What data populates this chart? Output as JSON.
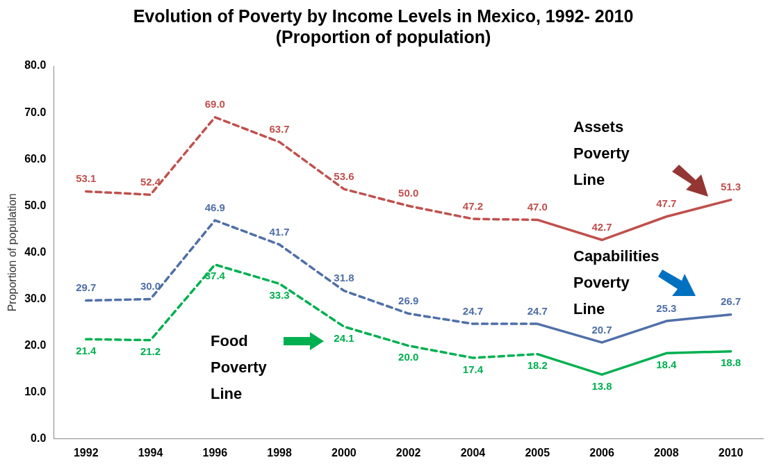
{
  "chart_data": {
    "type": "line",
    "title": "Evolution of Poverty by Income Levels in Mexico, 1992- 2010\n(Proportion of population)",
    "ylabel": "Proportion of population",
    "categories": [
      "1992",
      "1994",
      "1996",
      "1998",
      "2000",
      "2002",
      "2004",
      "2005",
      "2006",
      "2008",
      "2010"
    ],
    "ylim": [
      0,
      80
    ],
    "yticks": [
      {
        "value": 0,
        "label": "0.0"
      },
      {
        "value": 10,
        "label": "10.0"
      },
      {
        "value": 20,
        "label": "20.0"
      },
      {
        "value": 30,
        "label": "30.0"
      },
      {
        "value": 40,
        "label": "40.0"
      },
      {
        "value": 50,
        "label": "50.0"
      },
      {
        "value": 60,
        "label": "60.0"
      },
      {
        "value": 70,
        "label": "70.0"
      },
      {
        "value": 80,
        "label": "80.0"
      }
    ],
    "grid": false,
    "legend": false,
    "marker": "none",
    "series": [
      {
        "color": "#c0504d",
        "line_style": "dashed",
        "values": [
          53.1,
          52.4,
          69.0,
          63.7,
          53.6,
          50.0,
          47.2,
          47.0,
          null,
          null,
          null
        ],
        "value_labels": [
          "53.1",
          "52.4",
          "69.0",
          "63.7",
          "53.6",
          "50.0",
          "47.2",
          "47.0",
          null,
          null,
          null
        ]
      },
      {
        "color": "#c0504d",
        "line_style": "solid",
        "values": [
          null,
          null,
          null,
          null,
          null,
          null,
          null,
          47.0,
          42.7,
          47.7,
          51.3
        ],
        "value_labels": [
          null,
          null,
          null,
          null,
          null,
          null,
          null,
          null,
          "42.7",
          "47.7",
          "51.3"
        ]
      },
      {
        "color": "#4f6fa8",
        "line_style": "dashed",
        "values": [
          29.7,
          30.0,
          46.9,
          41.7,
          31.8,
          26.9,
          24.7,
          24.7,
          null,
          null,
          null
        ],
        "value_labels": [
          "29.7",
          "30.0",
          "46.9",
          "41.7",
          "31.8",
          "26.9",
          "24.7",
          "24.7",
          null,
          null,
          null
        ]
      },
      {
        "color": "#4f6fa8",
        "line_style": "solid",
        "values": [
          null,
          null,
          null,
          null,
          null,
          null,
          null,
          24.7,
          20.7,
          25.3,
          26.7
        ],
        "value_labels": [
          null,
          null,
          null,
          null,
          null,
          null,
          null,
          null,
          "20.7",
          "25.3",
          "26.7"
        ]
      },
      {
        "color": "#00b050",
        "line_style": "dashed",
        "values": [
          21.4,
          21.2,
          37.4,
          33.3,
          24.1,
          20.0,
          17.4,
          18.2,
          null,
          null,
          null
        ],
        "value_labels": [
          "21.4",
          "21.2",
          "37.4",
          "33.3",
          "24.1",
          "20.0",
          "17.4",
          "18.2",
          null,
          null,
          null
        ]
      },
      {
        "color": "#00b050",
        "line_style": "solid",
        "values": [
          null,
          null,
          null,
          null,
          null,
          null,
          null,
          18.2,
          13.8,
          18.4,
          18.8
        ],
        "value_labels": [
          null,
          null,
          null,
          null,
          null,
          null,
          null,
          null,
          "13.8",
          "18.4",
          "18.8"
        ]
      }
    ],
    "annotations": [
      "Assets\nPoverty\nLine",
      "Capabilities\nPoverty\nLine",
      "Food\nPoverty\nLine"
    ]
  }
}
